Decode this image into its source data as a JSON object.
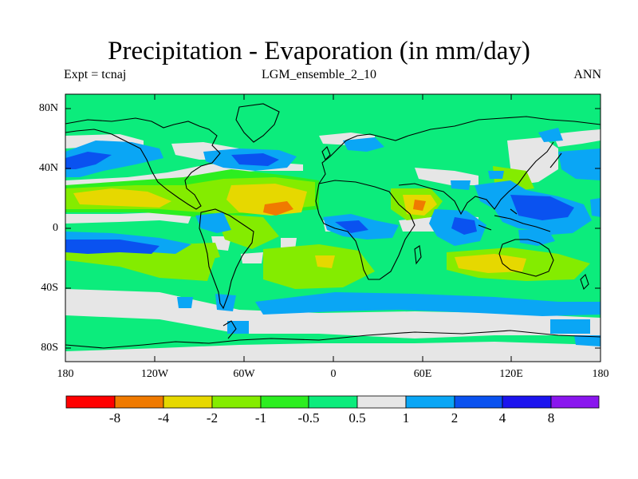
{
  "title": "Precipitation - Evaporation (in mm/day)",
  "subtitle_left": "Expt = tcnaj",
  "subtitle_center": "LGM_ensemble_2_10",
  "subtitle_right": "ANN",
  "lat_labels": [
    "80N",
    "40N",
    "0",
    "40S",
    "80S"
  ],
  "lon_labels": [
    "180",
    "120W",
    "60W",
    "0",
    "60E",
    "120E",
    "180"
  ],
  "colorbar": {
    "labels": [
      "-8",
      "-4",
      "-2",
      "-1",
      "-0.5",
      "0.5",
      "1",
      "2",
      "4",
      "8"
    ],
    "colors": [
      "#ff0000",
      "#f07a00",
      "#e6d800",
      "#84ec00",
      "#2cee20",
      "#0cec7c",
      "#e6e6e6",
      "#0aa6f5",
      "#0a52f0",
      "#1c14ee",
      "#8a16ee"
    ]
  },
  "field_colors": {
    "ocean_base": "#0cec7c",
    "light_grey": "#e6e6e6",
    "light_blue": "#0aa6f5",
    "mid_blue": "#0a52f0",
    "dark_blue": "#1c14ee",
    "green": "#2cee20",
    "yellow_green": "#84ec00",
    "yellow": "#e6d800",
    "orange": "#f07a00",
    "coast": "#000000"
  }
}
